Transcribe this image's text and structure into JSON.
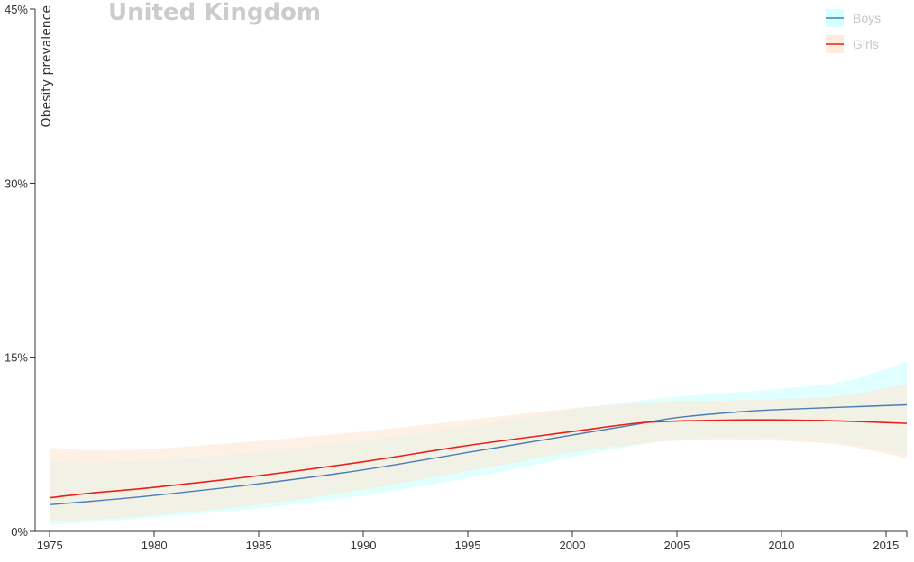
{
  "chart_data": {
    "type": "line",
    "title": "United Kingdom",
    "ylabel": "Obesity prevalence",
    "xlabel": "",
    "xlim": [
      1974.3,
      2016
    ],
    "ylim": [
      0,
      45
    ],
    "x_ticks": [
      1975,
      1980,
      1985,
      1990,
      1995,
      2000,
      2005,
      2010,
      2015
    ],
    "x_tick_labels": [
      "1975",
      "1980",
      "1985",
      "1990",
      "1995",
      "2000",
      "2005",
      "2010",
      "2015"
    ],
    "y_ticks": [
      0,
      15,
      30,
      45
    ],
    "y_tick_labels": [
      "0%",
      "15%",
      "30%",
      "45%"
    ],
    "legend_position": "top-right",
    "x": [
      1975,
      1977,
      1980,
      1985,
      1990,
      1995,
      2000,
      2003,
      2005,
      2008,
      2010,
      2013,
      2016
    ],
    "series": [
      {
        "name": "Boys",
        "color": "#4a7db5",
        "band_color": "#ccffff",
        "values": [
          2.3,
          2.6,
          3.1,
          4.1,
          5.3,
          6.8,
          8.3,
          9.2,
          9.8,
          10.3,
          10.5,
          10.7,
          10.9
        ],
        "lower": [
          0.6,
          0.8,
          1.2,
          2.0,
          3.1,
          4.6,
          6.4,
          7.4,
          7.9,
          8.1,
          8.0,
          7.6,
          6.6
        ],
        "upper": [
          6.0,
          5.9,
          6.1,
          6.8,
          7.8,
          9.0,
          10.5,
          11.2,
          11.6,
          12.0,
          12.3,
          12.9,
          14.6
        ]
      },
      {
        "name": "Girls",
        "color": "#e8201a",
        "band_color": "#fbe8d6",
        "values": [
          2.9,
          3.3,
          3.8,
          4.8,
          6.0,
          7.4,
          8.6,
          9.3,
          9.5,
          9.6,
          9.6,
          9.5,
          9.3
        ],
        "lower": [
          0.9,
          1.0,
          1.4,
          2.3,
          3.6,
          5.2,
          6.8,
          7.5,
          7.8,
          7.9,
          7.8,
          7.4,
          6.3
        ],
        "upper": [
          7.2,
          7.0,
          7.1,
          7.8,
          8.6,
          9.6,
          10.6,
          11.0,
          11.2,
          11.3,
          11.4,
          11.7,
          12.7
        ]
      }
    ]
  }
}
